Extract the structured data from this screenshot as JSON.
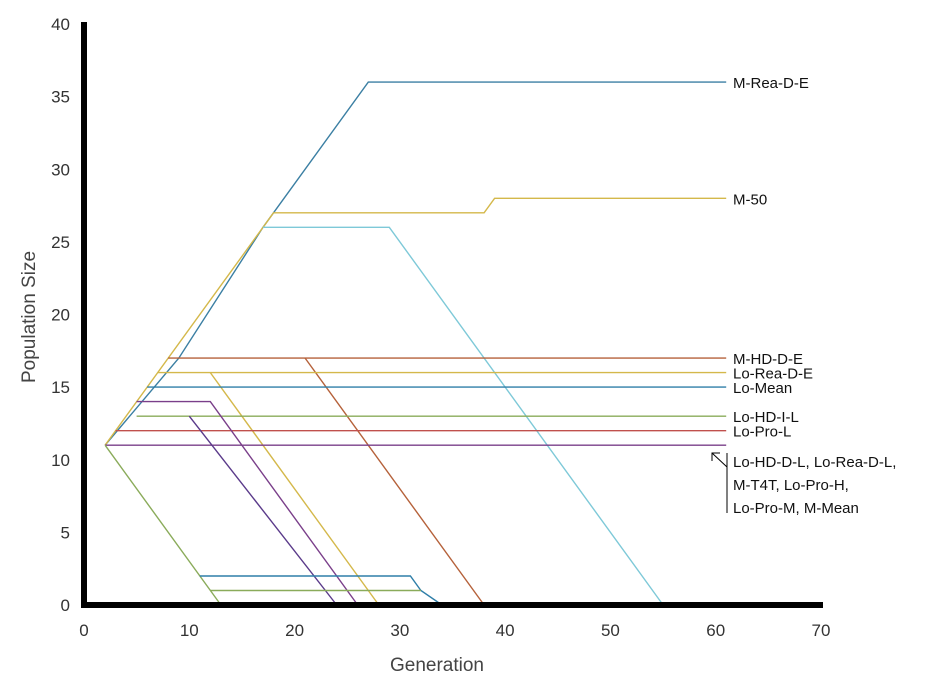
{
  "chart_data": {
    "type": "line",
    "xlabel": "Generation",
    "ylabel": "Population Size",
    "xlim": [
      0,
      70
    ],
    "ylim": [
      0,
      40
    ],
    "xticks": [
      "0",
      "10",
      "20",
      "30",
      "40",
      "50",
      "60",
      "70"
    ],
    "yticks": [
      "0",
      "5",
      "10",
      "15",
      "20",
      "25",
      "30",
      "35",
      "40"
    ],
    "grid": false,
    "series": [
      {
        "color": "#3b7fa3",
        "points": [
          [
            2,
            11
          ],
          [
            9,
            17
          ],
          [
            17,
            26
          ],
          [
            27,
            36
          ],
          [
            61,
            36
          ]
        ]
      },
      {
        "color": "#d4b84a",
        "points": [
          [
            2,
            11
          ],
          [
            17,
            26
          ],
          [
            18,
            27
          ],
          [
            38,
            27
          ],
          [
            39,
            28
          ],
          [
            61,
            28
          ]
        ]
      },
      {
        "color": "#7ec9d8",
        "points": [
          [
            17,
            26
          ],
          [
            29,
            26
          ],
          [
            55,
            0
          ]
        ]
      },
      {
        "color": "#b5613a",
        "points": [
          [
            8,
            17
          ],
          [
            61,
            17
          ]
        ]
      },
      {
        "color": "#b5613a",
        "points": [
          [
            21,
            17
          ],
          [
            38,
            0
          ]
        ]
      },
      {
        "color": "#d4b84a",
        "points": [
          [
            7,
            16
          ],
          [
            61,
            16
          ]
        ]
      },
      {
        "color": "#d4b84a",
        "points": [
          [
            12,
            16
          ],
          [
            28,
            0
          ]
        ]
      },
      {
        "color": "#2e7ea8",
        "points": [
          [
            6,
            15
          ],
          [
            61,
            15
          ]
        ]
      },
      {
        "color": "#8aab5a",
        "points": [
          [
            5,
            13
          ],
          [
            61,
            13
          ]
        ]
      },
      {
        "color": "#c0504d",
        "points": [
          [
            3,
            12
          ],
          [
            61,
            12
          ]
        ]
      },
      {
        "color": "#7a3f8a",
        "points": [
          [
            2,
            11
          ],
          [
            61,
            11
          ]
        ]
      },
      {
        "color": "#7a3f8a",
        "points": [
          [
            5,
            14
          ],
          [
            12,
            14
          ],
          [
            26,
            0
          ]
        ]
      },
      {
        "color": "#5a3a8a",
        "points": [
          [
            10,
            13
          ],
          [
            24,
            0
          ]
        ]
      },
      {
        "color": "#8aab5a",
        "points": [
          [
            2,
            11
          ],
          [
            13,
            0
          ]
        ]
      },
      {
        "color": "#2e7ea8",
        "points": [
          [
            11,
            2
          ],
          [
            31,
            2
          ],
          [
            32,
            1
          ],
          [
            34,
            0
          ]
        ]
      },
      {
        "color": "#8aab5a",
        "points": [
          [
            12,
            1
          ],
          [
            32,
            1
          ]
        ]
      }
    ],
    "labels": [
      {
        "text": "M-Rea-D-E",
        "y": 36
      },
      {
        "text": "M-50",
        "y": 28
      },
      {
        "text": "M-HD-D-E",
        "y": 17
      },
      {
        "text": "Lo-Rea-D-E",
        "y": 16
      },
      {
        "text": "Lo-Mean",
        "y": 15
      },
      {
        "text": "Lo-HD-I-L",
        "y": 13
      },
      {
        "text": "Lo-Pro-L",
        "y": 12
      }
    ],
    "multi_label": [
      "Lo-HD-D-L, Lo-Rea-D-L,",
      "M-T4T, Lo-Pro-H,",
      "Lo-Pro-M, M-Mean"
    ]
  }
}
